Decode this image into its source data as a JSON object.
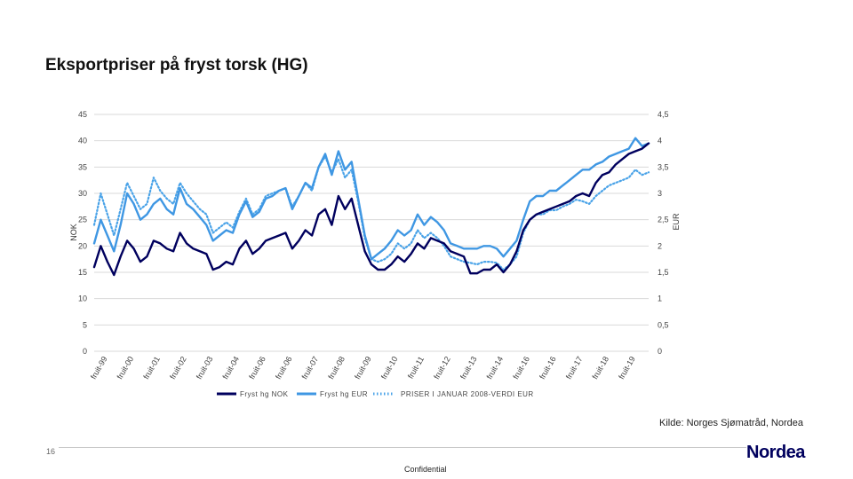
{
  "slide": {
    "title": "Eksportpriser på fryst torsk (HG)",
    "source": "Kilde: Norges Sjømatråd, Nordea",
    "slide_number": "16",
    "confidential": "Confidential",
    "logo": "Nordea"
  },
  "chart_data": {
    "type": "line",
    "title": "",
    "ylabel": "NOK",
    "y2label": "EUR",
    "ylim": [
      0,
      45
    ],
    "y2lim": [
      0,
      4.5
    ],
    "yticks": [
      "0",
      "5",
      "10",
      "15",
      "20",
      "25",
      "30",
      "35",
      "40",
      "45"
    ],
    "y2ticks": [
      "0",
      "0,5",
      "1",
      "1,5",
      "2",
      "2,5",
      "3",
      "3,5",
      "4",
      "4,5"
    ],
    "grid": true,
    "legend": "bottom",
    "xlim": [
      1999,
      2020
    ],
    "categories": [
      "fruit-99",
      "fruit-00",
      "fruit-01",
      "fruit-02",
      "fruit-03",
      "fruit-04",
      "fruit-06",
      "fruit-06",
      "fruit-07",
      "fruit-08",
      "fruit-09",
      "fruit-10",
      "fruit-11",
      "fruit-12",
      "fruit-13",
      "fruit-14",
      "fruit-16",
      "fruit-16",
      "fruit-17",
      "fruit-18",
      "fruit-19"
    ],
    "series": [
      {
        "name": "Fryst hg NOK",
        "axis": "left",
        "color": "#00005e",
        "style": "solid",
        "x": [
          1999.0,
          1999.25,
          1999.5,
          1999.75,
          2000.0,
          2000.25,
          2000.5,
          2000.75,
          2001.0,
          2001.25,
          2001.5,
          2001.75,
          2002.0,
          2002.25,
          2002.5,
          2002.75,
          2003.0,
          2003.25,
          2003.5,
          2003.75,
          2004.0,
          2004.25,
          2004.5,
          2004.75,
          2005.0,
          2005.25,
          2005.5,
          2005.75,
          2006.0,
          2006.25,
          2006.5,
          2006.75,
          2007.0,
          2007.25,
          2007.5,
          2007.75,
          2008.0,
          2008.25,
          2008.5,
          2008.75,
          2009.0,
          2009.25,
          2009.5,
          2009.75,
          2010.0,
          2010.25,
          2010.5,
          2010.75,
          2011.0,
          2011.25,
          2011.5,
          2011.75,
          2012.0,
          2012.25,
          2012.5,
          2012.75,
          2013.0,
          2013.25,
          2013.5,
          2013.75,
          2014.0,
          2014.25,
          2014.5,
          2014.75,
          2015.0,
          2015.25,
          2015.5,
          2015.75,
          2016.0,
          2016.25,
          2016.5,
          2016.75,
          2017.0,
          2017.25,
          2017.5,
          2017.75,
          2018.0,
          2018.25,
          2018.5,
          2018.75,
          2019.0,
          2019.25,
          2019.5,
          2019.75,
          2020.0
        ],
        "values": [
          16,
          20,
          17,
          14.5,
          18,
          21,
          19.5,
          17,
          18,
          21,
          20.5,
          19.5,
          19,
          22.5,
          20.5,
          19.5,
          19,
          18.5,
          15.5,
          16,
          17,
          16.5,
          19.5,
          21,
          18.5,
          19.5,
          21,
          21.5,
          22,
          22.5,
          19.5,
          21,
          23,
          22,
          26,
          27,
          24,
          29.5,
          27,
          29,
          24,
          19,
          16.5,
          15.5,
          15.5,
          16.5,
          18,
          17,
          18.5,
          20.5,
          19.5,
          21.5,
          21,
          20.5,
          19,
          18.5,
          18,
          14.8,
          14.8,
          15.5,
          15.5,
          16.5,
          15,
          16.5,
          19,
          23,
          25,
          26,
          26.5,
          27,
          27.5,
          28,
          28.5,
          29.5,
          30,
          29.5,
          32,
          33.5,
          34,
          35.5,
          36.5,
          37.5,
          38,
          38.5,
          39.5
        ]
      },
      {
        "name": "Fryst hg EUR",
        "axis": "right",
        "color": "#3f97e3",
        "style": "solid",
        "x": [
          1999.0,
          1999.25,
          1999.5,
          1999.75,
          2000.0,
          2000.25,
          2000.5,
          2000.75,
          2001.0,
          2001.25,
          2001.5,
          2001.75,
          2002.0,
          2002.25,
          2002.5,
          2002.75,
          2003.0,
          2003.25,
          2003.5,
          2003.75,
          2004.0,
          2004.25,
          2004.5,
          2004.75,
          2005.0,
          2005.25,
          2005.5,
          2005.75,
          2006.0,
          2006.25,
          2006.5,
          2006.75,
          2007.0,
          2007.25,
          2007.5,
          2007.75,
          2008.0,
          2008.25,
          2008.5,
          2008.75,
          2009.0,
          2009.25,
          2009.5,
          2009.75,
          2010.0,
          2010.25,
          2010.5,
          2010.75,
          2011.0,
          2011.25,
          2011.5,
          2011.75,
          2012.0,
          2012.25,
          2012.5,
          2012.75,
          2013.0,
          2013.25,
          2013.5,
          2013.75,
          2014.0,
          2014.25,
          2014.5,
          2014.75,
          2015.0,
          2015.25,
          2015.5,
          2015.75,
          2016.0,
          2016.25,
          2016.5,
          2016.75,
          2017.0,
          2017.25,
          2017.5,
          2017.75,
          2018.0,
          2018.25,
          2018.5,
          2018.75,
          2019.0,
          2019.25,
          2019.5,
          2019.75,
          2020.0
        ],
        "values": [
          2.05,
          2.5,
          2.2,
          1.9,
          2.4,
          3.0,
          2.8,
          2.5,
          2.6,
          2.8,
          2.9,
          2.7,
          2.6,
          3.1,
          2.8,
          2.7,
          2.55,
          2.4,
          2.1,
          2.2,
          2.3,
          2.25,
          2.6,
          2.85,
          2.55,
          2.65,
          2.9,
          2.95,
          3.05,
          3.1,
          2.7,
          2.95,
          3.2,
          3.1,
          3.5,
          3.75,
          3.35,
          3.8,
          3.45,
          3.6,
          2.9,
          2.2,
          1.75,
          1.85,
          1.95,
          2.1,
          2.3,
          2.2,
          2.3,
          2.6,
          2.4,
          2.55,
          2.45,
          2.3,
          2.05,
          2.0,
          1.95,
          1.95,
          1.95,
          2.0,
          2.0,
          1.95,
          1.8,
          1.95,
          2.1,
          2.5,
          2.85,
          2.95,
          2.95,
          3.05,
          3.05,
          3.15,
          3.25,
          3.35,
          3.45,
          3.45,
          3.55,
          3.6,
          3.7,
          3.75,
          3.8,
          3.85,
          4.05,
          3.9,
          3.95
        ]
      },
      {
        "name": "PRISER I JANUAR 2008-VERDI EUR",
        "axis": "left",
        "color": "#4aa3e8",
        "style": "dotted",
        "x": [
          1999.0,
          1999.25,
          1999.5,
          1999.75,
          2000.0,
          2000.25,
          2000.5,
          2000.75,
          2001.0,
          2001.25,
          2001.5,
          2001.75,
          2002.0,
          2002.25,
          2002.5,
          2002.75,
          2003.0,
          2003.25,
          2003.5,
          2003.75,
          2004.0,
          2004.25,
          2004.5,
          2004.75,
          2005.0,
          2005.25,
          2005.5,
          2005.75,
          2006.0,
          2006.25,
          2006.5,
          2006.75,
          2007.0,
          2007.25,
          2007.5,
          2007.75,
          2008.0,
          2008.25,
          2008.5,
          2008.75,
          2009.0,
          2009.25,
          2009.5,
          2009.75,
          2010.0,
          2010.25,
          2010.5,
          2010.75,
          2011.0,
          2011.25,
          2011.5,
          2011.75,
          2012.0,
          2012.25,
          2012.5,
          2012.75,
          2013.0,
          2013.25,
          2013.5,
          2013.75,
          2014.0,
          2014.25,
          2014.5,
          2014.75,
          2015.0,
          2015.25,
          2015.5,
          2015.75,
          2016.0,
          2016.25,
          2016.5,
          2016.75,
          2017.0,
          2017.25,
          2017.5,
          2017.75,
          2018.0,
          2018.25,
          2018.5,
          2018.75,
          2019.0,
          2019.25,
          2019.5,
          2019.75,
          2020.0
        ],
        "values": [
          24,
          30,
          26,
          22,
          27,
          32,
          29.5,
          27,
          28,
          33,
          30.5,
          29,
          28,
          32,
          30,
          28.5,
          27,
          26,
          22.5,
          23.5,
          24.5,
          23.5,
          26.5,
          29,
          26,
          27,
          29.5,
          30,
          30.5,
          31,
          27.5,
          29.5,
          32,
          30.5,
          35,
          37,
          34,
          36.5,
          33,
          34.5,
          28.5,
          21.5,
          17.5,
          17,
          17.5,
          18.5,
          20.5,
          19.5,
          20.5,
          23,
          21.5,
          22.5,
          21.5,
          20,
          18,
          17.5,
          17,
          16.8,
          16.5,
          17,
          17,
          16.8,
          15.5,
          16.5,
          18,
          22.5,
          25,
          26,
          26,
          26.8,
          26.8,
          27.5,
          28,
          28.8,
          28.5,
          28,
          29.5,
          30.5,
          31.5,
          32,
          32.5,
          33,
          34.5,
          33.5,
          34
        ]
      }
    ]
  }
}
